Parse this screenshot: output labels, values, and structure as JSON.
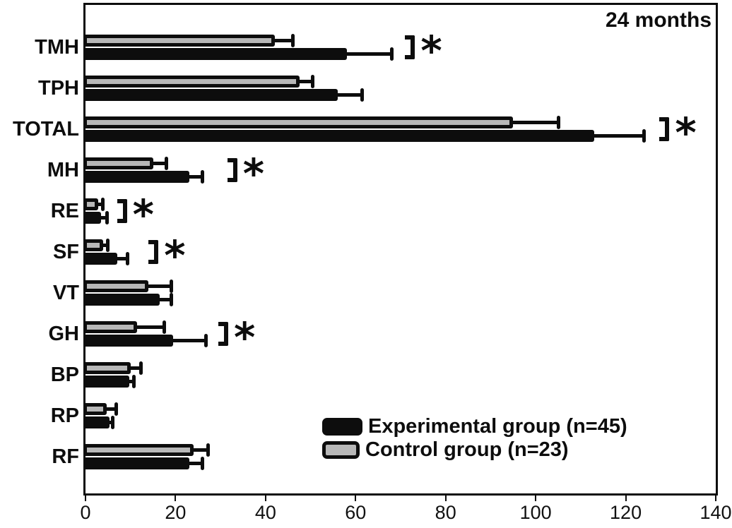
{
  "annotation": "24 months",
  "legend": {
    "experimental": "Experimental group (n=45)",
    "control": "Control group (n=23)"
  },
  "colors": {
    "experimental_fill": "#0d0d0d",
    "control_fill": "#b8b8b8",
    "frame": "#0d0d0d",
    "background": "#ffffff"
  },
  "significance_marker": "*",
  "chart_data": {
    "type": "bar",
    "orientation": "horizontal",
    "title": "",
    "annotation": "24 months",
    "xlabel": "",
    "ylabel": "",
    "xlim": [
      0,
      140
    ],
    "xticks": [
      0,
      20,
      40,
      60,
      80,
      100,
      120,
      140
    ],
    "grid": false,
    "legend_position": "inside-bottom-right",
    "categories": [
      "TMH",
      "TPH",
      "TOTAL",
      "MH",
      "RE",
      "SF",
      "VT",
      "GH",
      "BP",
      "RP",
      "RF"
    ],
    "series": [
      {
        "name": "Control group (n=23)",
        "color": "#b8b8b8",
        "position_in_pair": "top",
        "values": [
          42,
          47.5,
          95,
          15,
          2.8,
          4,
          14,
          11.5,
          10,
          4.7,
          24
        ],
        "errors": [
          4,
          3,
          10,
          3,
          1.0,
          1.0,
          5,
          6,
          2.3,
          2.2,
          3.3
        ]
      },
      {
        "name": "Experimental group (n=45)",
        "color": "#0d0d0d",
        "position_in_pair": "bottom",
        "values": [
          58,
          56,
          113,
          23,
          3.5,
          7,
          16.5,
          19.5,
          9.8,
          5.3,
          23
        ],
        "errors": [
          10,
          5.5,
          11,
          3,
          1.3,
          2.4,
          2.6,
          7.3,
          1.0,
          0.8,
          3
        ]
      }
    ],
    "significance_brackets": [
      {
        "category": "TMH",
        "x": 71,
        "label": "*"
      },
      {
        "category": "TOTAL",
        "x": 127.5,
        "label": "*"
      },
      {
        "category": "MH",
        "x": 31.5,
        "label": "*"
      },
      {
        "category": "RE",
        "x": 7,
        "label": "*"
      },
      {
        "category": "SF",
        "x": 14,
        "label": "*"
      },
      {
        "category": "GH",
        "x": 29.5,
        "label": "*"
      }
    ]
  }
}
